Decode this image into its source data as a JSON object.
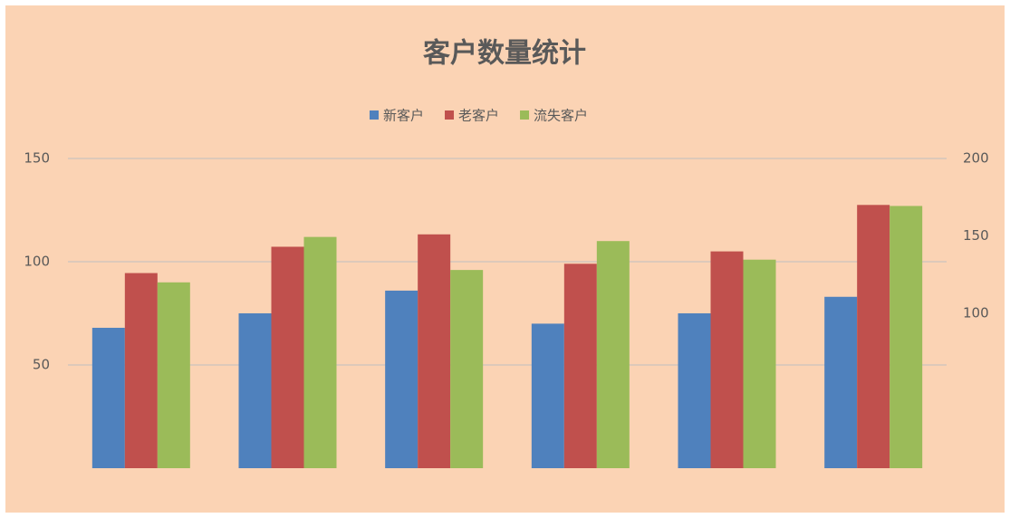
{
  "chart_data": {
    "type": "bar",
    "title": "客户数量统计",
    "categories": [
      null,
      null,
      null,
      null,
      null,
      null
    ],
    "series": [
      {
        "name": "新客户",
        "color": "#4f81bd",
        "values": [
          68,
          75,
          86,
          70,
          75,
          83
        ]
      },
      {
        "name": "老客户",
        "color": "#c0504d",
        "values": [
          126,
          143,
          151,
          132,
          140,
          170
        ],
        "axis": "y2"
      },
      {
        "name": "流失客户",
        "color": "#9bbb59",
        "values": [
          90,
          112,
          96,
          110,
          101,
          127
        ]
      }
    ],
    "ylim": [
      0,
      150
    ],
    "yticks": [
      50,
      100,
      150
    ],
    "y2lim": [
      0,
      200
    ],
    "y2ticks": [
      100,
      150,
      200
    ],
    "grid": true,
    "legend": "top"
  }
}
